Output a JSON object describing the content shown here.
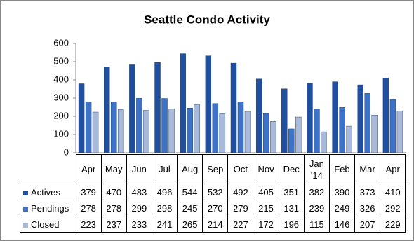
{
  "chart_data": {
    "type": "bar",
    "title": "Seattle Condo Activity",
    "categories": [
      "Apr",
      "May",
      "Jun",
      "Jul",
      "Aug",
      "Sep",
      "Oct",
      "Nov",
      "Dec",
      "Jan '14",
      "Feb",
      "Mar",
      "Apr"
    ],
    "series": [
      {
        "name": "Actives",
        "color": "#1f4f9e",
        "values": [
          379,
          470,
          483,
          496,
          544,
          532,
          492,
          405,
          351,
          382,
          390,
          373,
          410
        ]
      },
      {
        "name": "Pendings",
        "color": "#3c72c8",
        "values": [
          278,
          278,
          299,
          298,
          245,
          270,
          279,
          215,
          131,
          239,
          249,
          326,
          292
        ]
      },
      {
        "name": "Closed",
        "color": "#a9b9d9",
        "values": [
          223,
          237,
          233,
          241,
          265,
          214,
          227,
          172,
          196,
          115,
          146,
          207,
          229
        ]
      }
    ],
    "ylim": [
      0,
      600
    ],
    "yticks": [
      0,
      100,
      200,
      300,
      400,
      500,
      600
    ],
    "grid": false
  }
}
